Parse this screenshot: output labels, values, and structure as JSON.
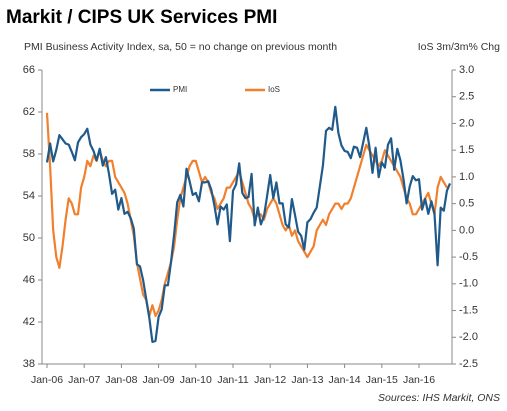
{
  "chart_data": {
    "type": "line",
    "title": "Markit / CIPS UK Services PMI",
    "subtitle": "PMI Business Activity Index, sa, 50 = no change on previous month",
    "y2_label": "IoS 3m/3m% Chg",
    "source": "Sources: IHS Markit, ONS",
    "categories": [
      "Jan-06",
      null,
      null,
      null,
      null,
      null,
      null,
      null,
      null,
      null,
      null,
      null,
      "Jan-07",
      null,
      null,
      null,
      null,
      null,
      null,
      null,
      null,
      null,
      null,
      null,
      "Jan-08",
      null,
      null,
      null,
      null,
      null,
      null,
      null,
      null,
      null,
      null,
      null,
      "Jan-09",
      null,
      null,
      null,
      null,
      null,
      null,
      null,
      null,
      null,
      null,
      null,
      "Jan-10",
      null,
      null,
      null,
      null,
      null,
      null,
      null,
      null,
      null,
      null,
      null,
      "Jan-11",
      null,
      null,
      null,
      null,
      null,
      null,
      null,
      null,
      null,
      null,
      null,
      "Jan-12",
      null,
      null,
      null,
      null,
      null,
      null,
      null,
      null,
      null,
      null,
      null,
      "Jan-13",
      null,
      null,
      null,
      null,
      null,
      null,
      null,
      null,
      null,
      null,
      null,
      "Jan-14",
      null,
      null,
      null,
      null,
      null,
      null,
      null,
      null,
      null,
      null,
      null,
      "Jan-15",
      null,
      null,
      null,
      null,
      null,
      null,
      null,
      null,
      null,
      null,
      null,
      "Jan-16",
      null,
      null,
      null,
      null,
      null,
      null,
      null,
      null,
      null,
      null
    ],
    "series": [
      {
        "name": "PMI",
        "color": "#1f5a8a",
        "values": [
          57.2,
          59.0,
          57.3,
          58.4,
          59.8,
          59.4,
          59.0,
          58.9,
          58.2,
          57.4,
          59.1,
          59.6,
          59.9,
          60.4,
          58.9,
          58.3,
          57.4,
          58.5,
          56.9,
          57.7,
          56.1,
          54.2,
          54.6,
          52.7,
          53.8,
          52.3,
          52.5,
          51.9,
          50.9,
          47.5,
          47.3,
          46.0,
          44.2,
          42.4,
          40.1,
          40.2,
          42.5,
          43.2,
          45.5,
          45.5,
          47.7,
          50.3,
          53.4,
          54.1,
          53.0,
          56.6,
          55.4,
          54.1,
          54.3,
          53.5,
          55.3,
          55.3,
          55.4,
          54.6,
          53.1,
          51.3,
          53.0,
          52.7,
          53.2,
          49.7,
          54.5,
          55.1,
          57.1,
          54.3,
          53.8,
          53.9,
          56.1,
          51.2,
          52.9,
          51.3,
          52.1,
          54.0,
          56.0,
          53.8,
          55.3,
          53.3,
          53.3,
          51.3,
          51.0,
          53.7,
          52.2,
          50.6,
          50.2,
          48.9,
          51.5,
          51.8,
          52.4,
          52.9,
          54.9,
          56.9,
          60.2,
          60.5,
          60.3,
          62.5,
          60.0,
          58.8,
          58.3,
          58.2,
          57.6,
          58.7,
          58.6,
          57.7,
          59.1,
          60.5,
          58.7,
          56.2,
          58.6,
          55.8,
          57.2,
          56.7,
          58.9,
          59.5,
          56.5,
          58.5,
          57.4,
          55.6,
          53.3,
          54.9,
          55.9,
          55.5,
          55.6,
          52.7,
          53.7,
          52.3,
          53.5,
          52.3,
          47.4,
          52.9,
          52.6,
          54.5,
          55.2
        ]
      },
      {
        "name": "IoS",
        "color": "#f0802e",
        "axis": "y2",
        "values": [
          2.2,
          1.2,
          0.0,
          -0.5,
          -0.7,
          -0.3,
          0.2,
          0.6,
          0.5,
          0.3,
          0.3,
          0.8,
          1.0,
          1.3,
          1.2,
          1.4,
          1.3,
          1.5,
          1.3,
          1.2,
          1.3,
          1.3,
          1.0,
          0.9,
          0.8,
          0.7,
          0.5,
          0.2,
          -0.1,
          -0.6,
          -0.9,
          -1.2,
          -1.3,
          -1.6,
          -1.4,
          -1.6,
          -1.5,
          -1.3,
          -1.0,
          -0.8,
          -0.6,
          -0.3,
          0.2,
          0.6,
          0.8,
          1.0,
          1.2,
          1.3,
          1.3,
          1.1,
          0.9,
          1.0,
          0.9,
          0.7,
          0.6,
          0.4,
          0.5,
          0.6,
          0.8,
          0.8,
          0.9,
          1.0,
          1.1,
          0.9,
          0.7,
          0.5,
          0.4,
          0.2,
          0.3,
          0.3,
          0.2,
          0.4,
          0.5,
          0.6,
          0.5,
          0.3,
          0.1,
          0.0,
          0.1,
          -0.1,
          0.0,
          -0.2,
          -0.3,
          -0.4,
          -0.5,
          -0.4,
          -0.3,
          0.0,
          0.1,
          0.2,
          0.1,
          0.3,
          0.4,
          0.5,
          0.5,
          0.4,
          0.5,
          0.5,
          0.6,
          0.8,
          1.0,
          1.2,
          1.4,
          1.6,
          1.5,
          1.4,
          1.3,
          1.2,
          1.3,
          1.5,
          1.4,
          1.3,
          1.2,
          1.1,
          1.0,
          0.8,
          0.6,
          0.5,
          0.3,
          0.3,
          0.4,
          0.5,
          0.6,
          0.7,
          0.5,
          0.3,
          0.8,
          1.0,
          0.9,
          0.8,
          null
        ]
      }
    ],
    "ylim": [
      38,
      66
    ],
    "yticks": [
      38,
      42,
      46,
      50,
      54,
      58,
      62,
      66
    ],
    "y2lim": [
      -2.5,
      3.0
    ],
    "y2ticks": [
      -2.5,
      {
        "value": -2.0,
        "label": "-2.0"
      },
      -1.5,
      {
        "value": -1.0,
        "label": "-1.0"
      },
      -0.5,
      {
        "value": 0,
        "label": "0.0"
      },
      0.5,
      {
        "value": 1.0,
        "label": "1.0"
      },
      1.5,
      {
        "value": 2.0,
        "label": "2.0"
      },
      2.5,
      {
        "value": 3.0,
        "label": "3.0"
      }
    ],
    "grid": false
  }
}
